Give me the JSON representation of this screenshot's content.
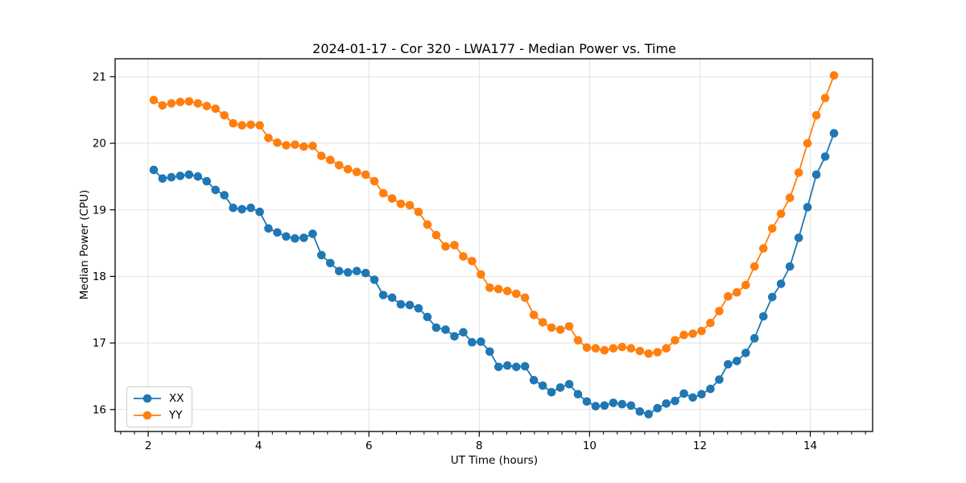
{
  "figure": {
    "title": "2024-01-17 - Cor 320 - LWA177 - Median Power vs. Time"
  },
  "axes": {
    "xlabel": "UT Time (hours)",
    "ylabel": "Median Power (CPU)"
  },
  "colors": {
    "series_xx": "#1f77b4",
    "series_yy": "#ff7f0e",
    "grid": "#e2e2e2",
    "spine": "#000000",
    "background": "#ffffff"
  },
  "legend": {
    "items": [
      "XX",
      "YY"
    ]
  },
  "chart_data": {
    "type": "line",
    "title": "2024-01-17 - Cor 320 - LWA177 - Median Power vs. Time",
    "xlabel": "UT Time (hours)",
    "ylabel": "Median Power (CPU)",
    "xlim": [
      1.4,
      15.13
    ],
    "ylim": [
      15.67,
      21.27
    ],
    "x_ticks": [
      2,
      4,
      6,
      8,
      10,
      12,
      14
    ],
    "y_ticks": [
      16,
      17,
      18,
      19,
      20,
      21
    ],
    "x_minor_tick_step": 0.25,
    "grid": true,
    "legend_position": "lower left",
    "marker": "circle",
    "x": [
      2.1,
      2.26,
      2.42,
      2.58,
      2.74,
      2.9,
      3.06,
      3.22,
      3.38,
      3.54,
      3.7,
      3.86,
      4.02,
      4.18,
      4.34,
      4.5,
      4.66,
      4.82,
      4.98,
      5.14,
      5.3,
      5.46,
      5.62,
      5.78,
      5.94,
      6.1,
      6.26,
      6.42,
      6.58,
      6.74,
      6.9,
      7.06,
      7.22,
      7.39,
      7.55,
      7.71,
      7.87,
      8.03,
      8.19,
      8.35,
      8.51,
      8.67,
      8.83,
      8.99,
      9.15,
      9.31,
      9.47,
      9.63,
      9.79,
      9.95,
      10.11,
      10.27,
      10.43,
      10.59,
      10.75,
      10.91,
      11.07,
      11.23,
      11.39,
      11.55,
      11.71,
      11.87,
      12.03,
      12.19,
      12.35,
      12.51,
      12.67,
      12.83,
      12.99,
      13.15,
      13.31,
      13.47,
      13.63,
      13.79,
      13.95,
      14.11,
      14.27,
      14.43
    ],
    "series": [
      {
        "name": "XX",
        "color": "#1f77b4",
        "values": [
          19.6,
          19.47,
          19.49,
          19.51,
          19.53,
          19.5,
          19.43,
          19.3,
          19.22,
          19.03,
          19.01,
          19.03,
          18.97,
          18.72,
          18.66,
          18.6,
          18.57,
          18.58,
          18.64,
          18.32,
          18.2,
          18.08,
          18.06,
          18.08,
          18.05,
          17.95,
          17.72,
          17.68,
          17.58,
          17.57,
          17.52,
          17.39,
          17.23,
          17.2,
          17.1,
          17.16,
          17.01,
          17.02,
          16.87,
          16.64,
          16.66,
          16.64,
          16.65,
          16.44,
          16.36,
          16.26,
          16.33,
          16.38,
          16.23,
          16.12,
          16.05,
          16.06,
          16.1,
          16.08,
          16.06,
          15.97,
          15.93,
          16.02,
          16.09,
          16.13,
          16.24,
          16.18,
          16.23,
          16.31,
          16.45,
          16.68,
          16.73,
          16.85,
          17.07,
          17.4,
          17.69,
          17.89,
          18.15,
          18.58,
          19.04,
          19.53,
          19.8,
          20.15
        ]
      },
      {
        "name": "YY",
        "color": "#ff7f0e",
        "values": [
          20.65,
          20.57,
          20.6,
          20.62,
          20.63,
          20.6,
          20.56,
          20.52,
          20.42,
          20.3,
          20.27,
          20.28,
          20.27,
          20.08,
          20.01,
          19.97,
          19.98,
          19.95,
          19.96,
          19.81,
          19.75,
          19.67,
          19.61,
          19.57,
          19.53,
          19.43,
          19.25,
          19.17,
          19.09,
          19.07,
          18.97,
          18.78,
          18.62,
          18.45,
          18.47,
          18.3,
          18.23,
          18.03,
          17.83,
          17.81,
          17.78,
          17.74,
          17.68,
          17.42,
          17.31,
          17.23,
          17.2,
          17.25,
          17.04,
          16.93,
          16.92,
          16.89,
          16.92,
          16.94,
          16.92,
          16.88,
          16.84,
          16.86,
          16.92,
          17.04,
          17.12,
          17.14,
          17.18,
          17.3,
          17.48,
          17.7,
          17.76,
          17.87,
          18.15,
          18.42,
          18.72,
          18.94,
          19.18,
          19.56,
          20.0,
          20.42,
          20.68,
          21.02
        ]
      }
    ]
  }
}
